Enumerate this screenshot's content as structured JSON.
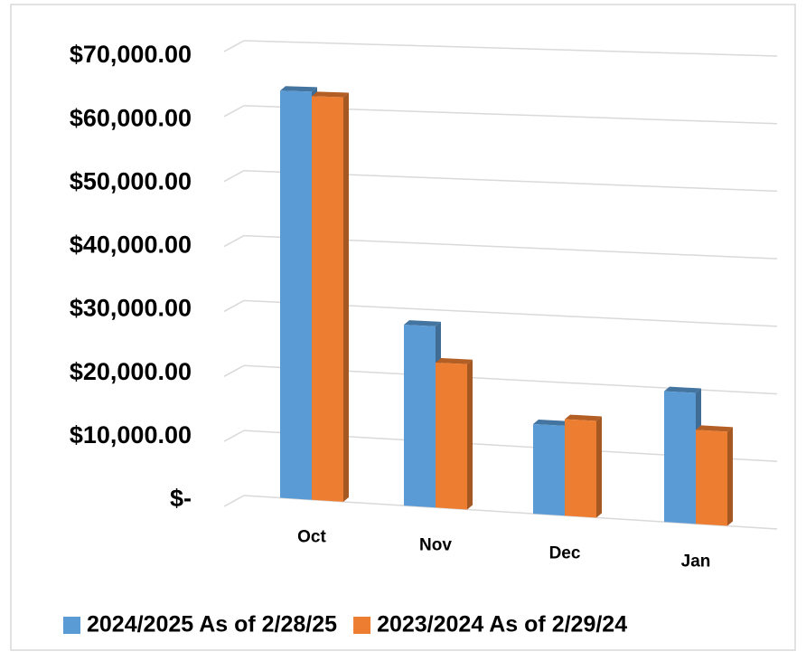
{
  "chart_data": {
    "type": "bar3d",
    "categories": [
      "Oct",
      "Nov",
      "Dec",
      "Jan"
    ],
    "series": [
      {
        "name": "2024/2025 As of 2/28/25",
        "color": "#5b9bd5",
        "values": [
          62500,
          27500,
          13500,
          19500
        ]
      },
      {
        "name": "2023/2024 As of 2/29/24",
        "color": "#ed7d31",
        "values": [
          61800,
          22000,
          14500,
          14000
        ]
      }
    ],
    "ylim": [
      0,
      70000
    ],
    "yticks": [
      {
        "value": 0,
        "label": "$-"
      },
      {
        "value": 10000,
        "label": "$10,000.00"
      },
      {
        "value": 20000,
        "label": "$20,000.00"
      },
      {
        "value": 30000,
        "label": "$30,000.00"
      },
      {
        "value": 40000,
        "label": "$40,000.00"
      },
      {
        "value": 50000,
        "label": "$50,000.00"
      },
      {
        "value": 60000,
        "label": "$60,000.00"
      },
      {
        "value": 70000,
        "label": "$70,000.00"
      }
    ],
    "grid": true,
    "legend": "bottom"
  }
}
